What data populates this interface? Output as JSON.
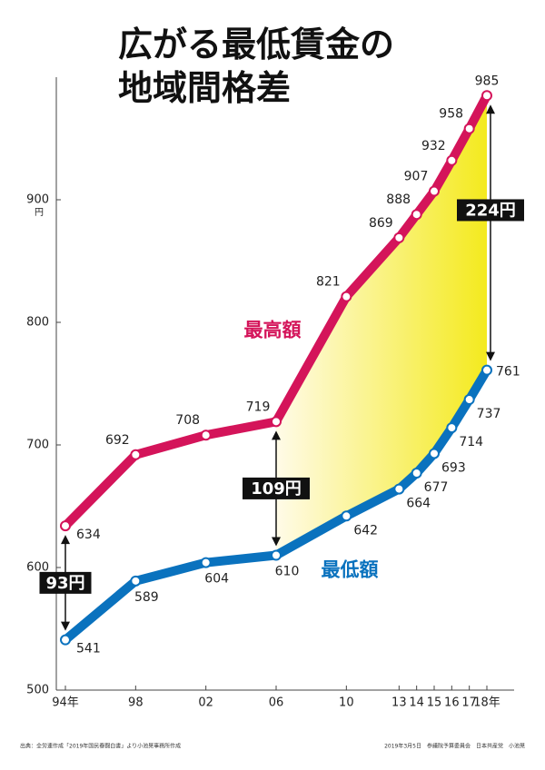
{
  "chart_data": {
    "type": "line",
    "title_lines": [
      "広がる最低賃金の",
      "地域間格差"
    ],
    "x": [
      1994,
      1998,
      2002,
      2006,
      2010,
      2013,
      2014,
      2015,
      2016,
      2017,
      2018
    ],
    "xlim": [
      1994,
      2018
    ],
    "xticks": [
      {
        "value": 1994,
        "label": "94年"
      },
      {
        "value": 1998,
        "label": "98"
      },
      {
        "value": 2002,
        "label": "02"
      },
      {
        "value": 2006,
        "label": "06"
      },
      {
        "value": 2010,
        "label": "10"
      },
      {
        "value": 2013,
        "label": "13"
      },
      {
        "value": 2014,
        "label": "14"
      },
      {
        "value": 2015,
        "label": "15"
      },
      {
        "value": 2016,
        "label": "16"
      },
      {
        "value": 2017,
        "label": "17"
      },
      {
        "value": 2018,
        "label": "18年"
      }
    ],
    "ylim": [
      500,
      1000
    ],
    "yticks": [
      500,
      600,
      700,
      800,
      900
    ],
    "y_unit": "円",
    "series": [
      {
        "name": "最高額",
        "color": "#d4145a",
        "values": [
          634,
          692,
          708,
          719,
          821,
          869,
          888,
          907,
          932,
          958,
          985
        ]
      },
      {
        "name": "最低額",
        "color": "#0a72be",
        "values": [
          541,
          589,
          604,
          610,
          642,
          664,
          677,
          693,
          714,
          737,
          761
        ]
      }
    ],
    "gap_annotations": [
      {
        "index": 0,
        "label": "93円"
      },
      {
        "index": 3,
        "label": "109円"
      },
      {
        "index": 10,
        "label": "224円"
      }
    ],
    "source": "出典：全労連作成「2019年国民春闘白書」より小池晃事務所作成",
    "credit": "2019年3月5日　参議院予算委員会　日本共産党　小池晃"
  }
}
